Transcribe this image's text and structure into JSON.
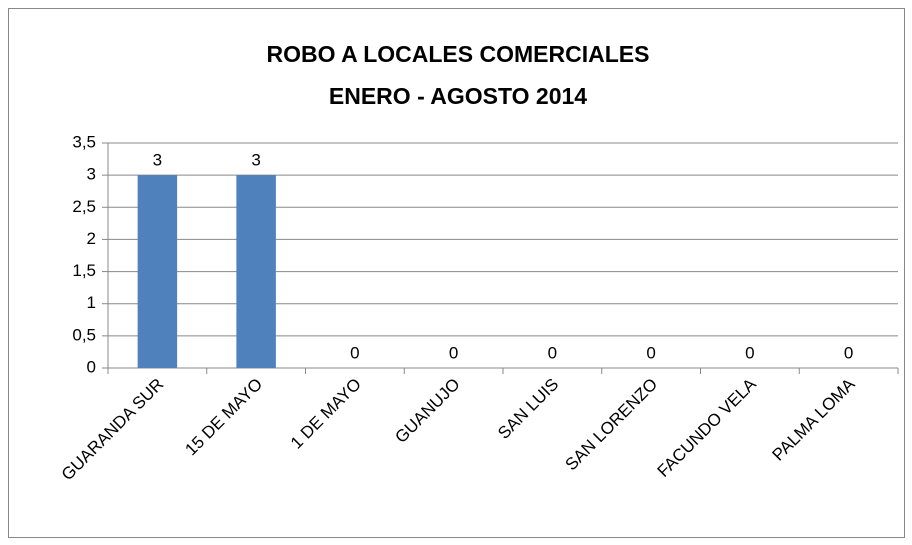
{
  "chart_data": {
    "type": "bar",
    "title": "ROBO A LOCALES COMERCIALES",
    "subtitle": "ENERO - AGOSTO 2014",
    "categories": [
      "GUARANDA SUR",
      "15 DE MAYO",
      "1 DE MAYO",
      "GUANUJO",
      "SAN LUIS",
      "SAN LORENZO",
      "FACUNDO VELA",
      "PALMA LOMA"
    ],
    "values": [
      3,
      3,
      0,
      0,
      0,
      0,
      0,
      0
    ],
    "color": "#4f81bd",
    "ylim": [
      0,
      3.5
    ],
    "yticks": [
      0,
      {
        "value": 0.5,
        "label": "0,5"
      },
      1,
      {
        "value": 1.5,
        "label": "1,5"
      },
      2,
      {
        "value": 2.5,
        "label": "2,5"
      },
      3,
      {
        "value": 3.5,
        "label": "3,5"
      }
    ],
    "grid": true
  }
}
